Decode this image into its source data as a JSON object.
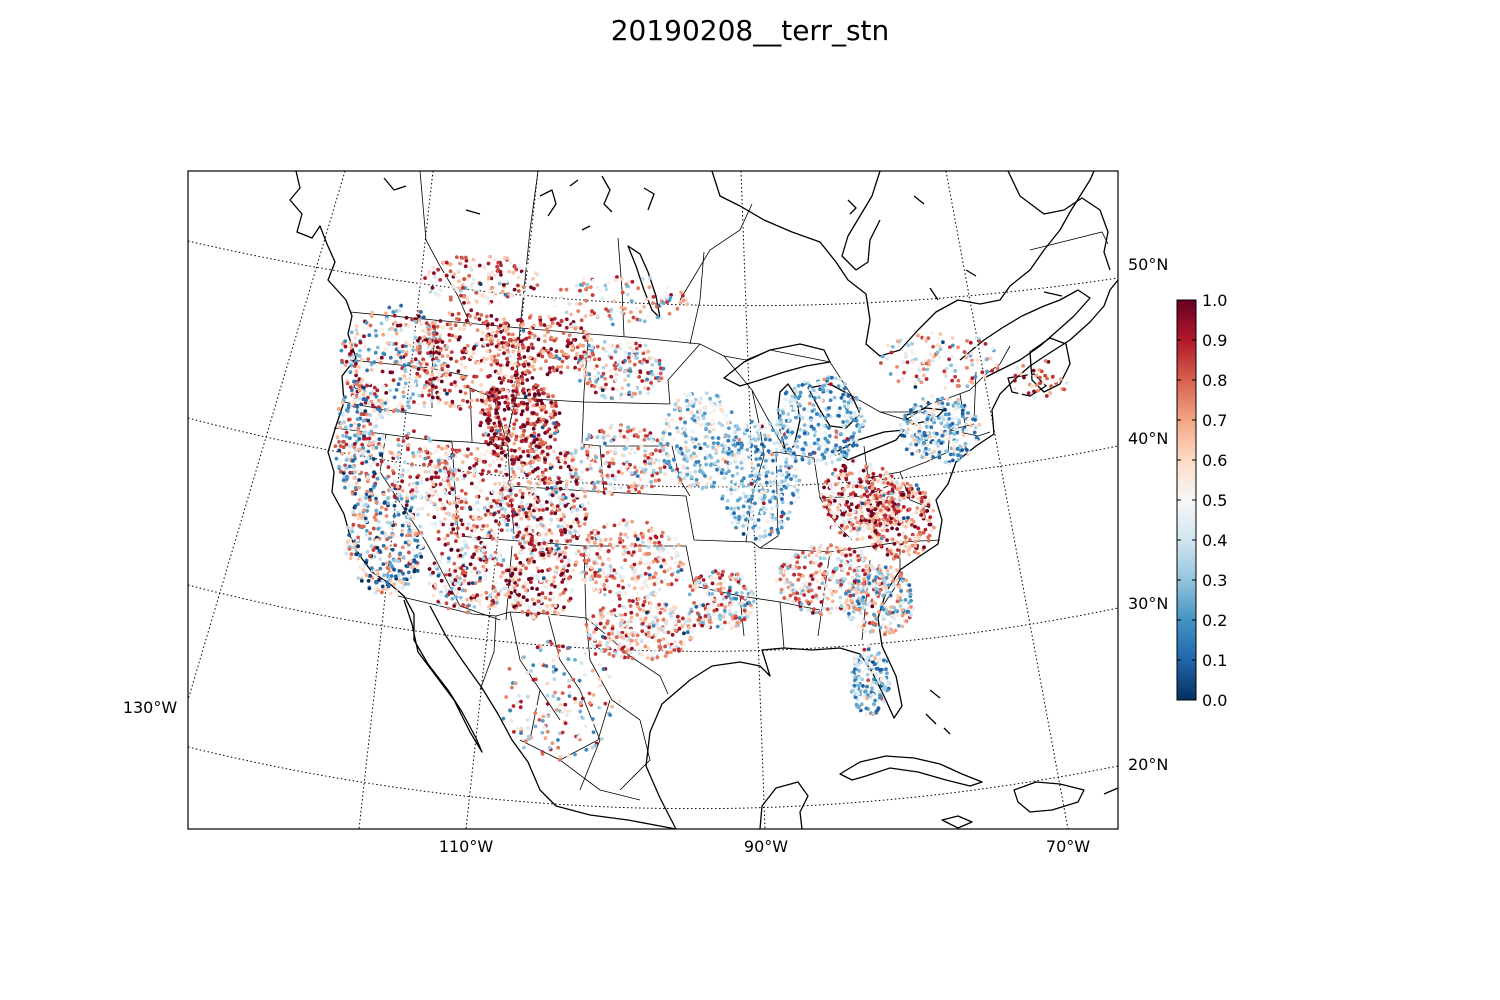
{
  "title": "20190208__terr_stn",
  "map": {
    "projection": "lambert-conformal",
    "region": "contiguous United States with southern Canada, Mexico and the Caribbean",
    "graticule_style": "dotted",
    "longitude_labels": [
      "130°W",
      "110°W",
      "90°W",
      "70°W"
    ],
    "latitude_labels": [
      "50°N",
      "40°N",
      "30°N",
      "20°N"
    ],
    "station_value_range": [
      0.0,
      1.0
    ],
    "marker": "small circular dots"
  },
  "colorbar": {
    "colormap": "RdBu_r",
    "ticks": [
      "0.0",
      "0.1",
      "0.2",
      "0.3",
      "0.4",
      "0.5",
      "0.6",
      "0.7",
      "0.8",
      "0.9",
      "1.0"
    ],
    "colors": [
      "#053061",
      "#2166ac",
      "#4393c3",
      "#92c5de",
      "#d1e5f0",
      "#f7f7f7",
      "#fddbc7",
      "#f4a582",
      "#d6604d",
      "#b2182b",
      "#67001f"
    ]
  }
}
